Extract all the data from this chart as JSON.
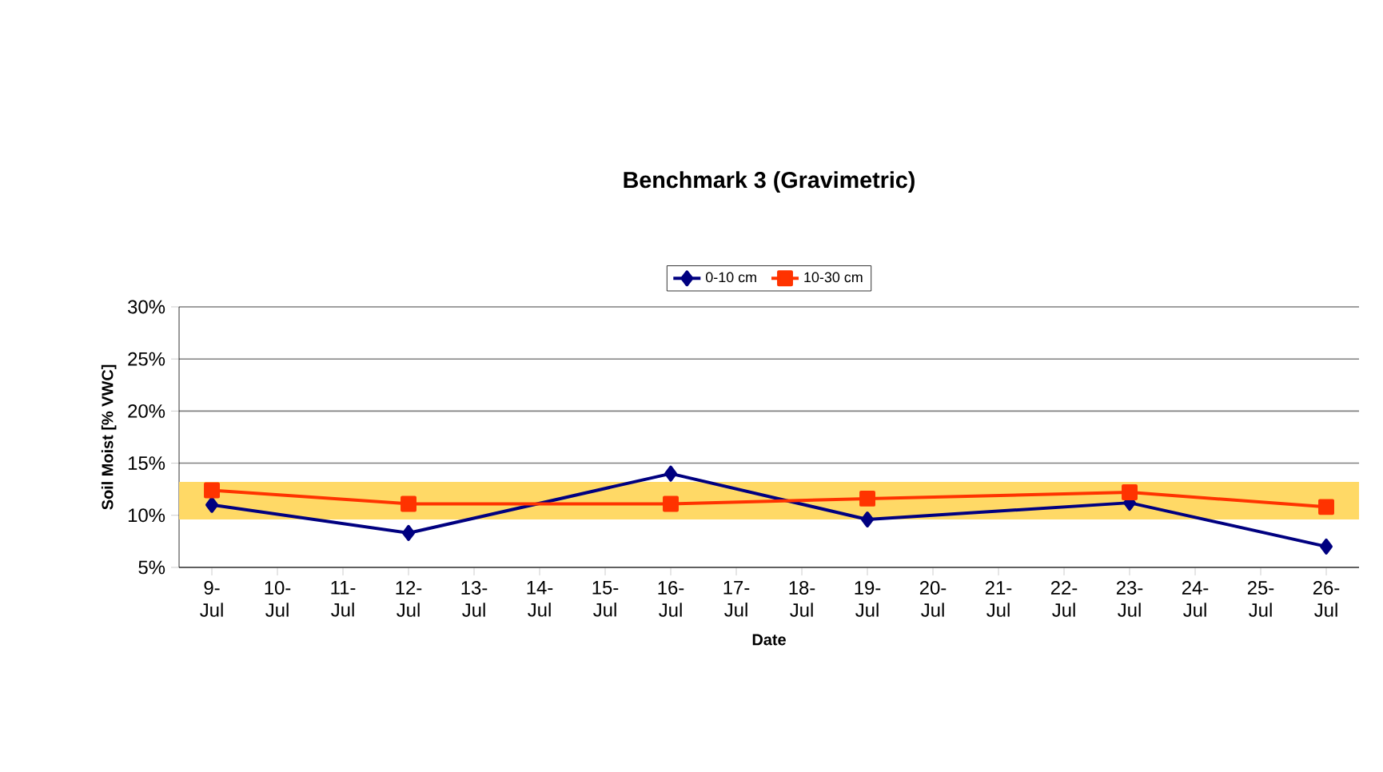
{
  "chart_data": {
    "type": "line",
    "title": "Benchmark 3 (Gravimetric)",
    "xlabel": "Date",
    "ylabel": "Soil Moist [% VWC]",
    "categories": [
      "9-Jul",
      "10-Jul",
      "11-Jul",
      "12-Jul",
      "13-Jul",
      "14-Jul",
      "15-Jul",
      "16-Jul",
      "17-Jul",
      "18-Jul",
      "19-Jul",
      "20-Jul",
      "21-Jul",
      "22-Jul",
      "23-Jul",
      "24-Jul",
      "25-Jul",
      "26-Jul"
    ],
    "series": [
      {
        "name": "0-10 cm",
        "color": "#000080",
        "marker": "diamond",
        "values": [
          11.0,
          null,
          null,
          8.3,
          null,
          null,
          null,
          14.0,
          null,
          null,
          9.6,
          null,
          null,
          null,
          11.2,
          null,
          null,
          7.0
        ]
      },
      {
        "name": "10-30 cm",
        "color": "#ff3300",
        "marker": "square",
        "values": [
          12.4,
          null,
          null,
          11.1,
          null,
          null,
          null,
          11.1,
          null,
          null,
          11.6,
          null,
          null,
          null,
          12.2,
          null,
          null,
          10.8
        ]
      }
    ],
    "bands": [
      {
        "axis": "y",
        "from": 9.6,
        "to": 13.2,
        "color": "#ffd966"
      }
    ],
    "ylim": [
      5,
      30
    ],
    "yticks": [
      {
        "value": 5,
        "label": "5%"
      },
      {
        "value": 10,
        "label": "10%"
      },
      {
        "value": 15,
        "label": "15%"
      },
      {
        "value": 20,
        "label": "20%"
      },
      {
        "value": 25,
        "label": "25%"
      },
      {
        "value": 30,
        "label": "30%"
      }
    ],
    "grid": "y",
    "legend": "top",
    "line_style": "solid"
  }
}
